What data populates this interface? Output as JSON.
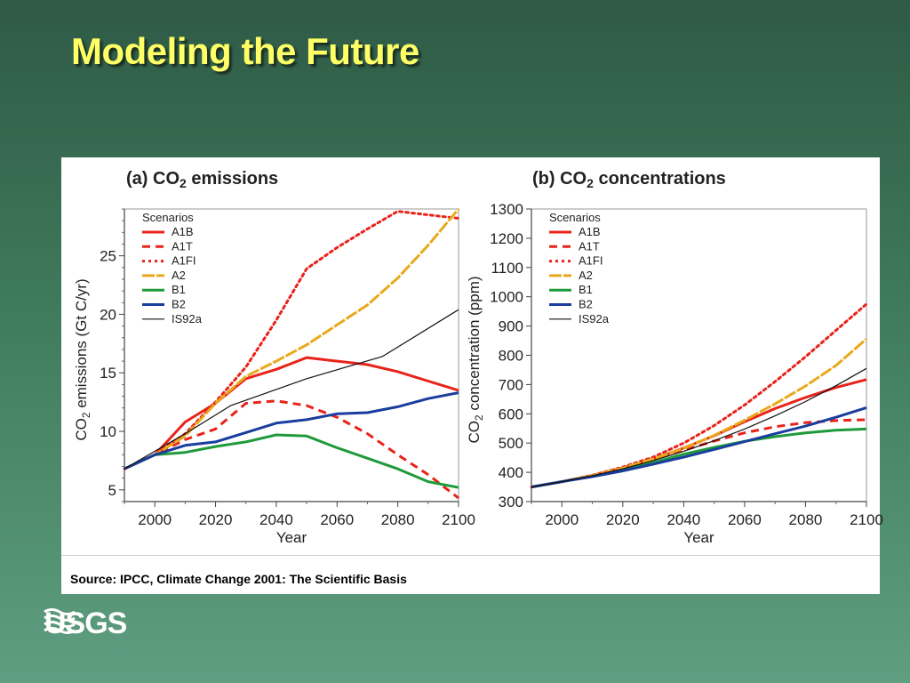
{
  "slide": {
    "title": "Modeling the Future",
    "source": "Source: IPCC, Climate Change 2001:  The Scientific Basis",
    "logo_text": "USGS"
  },
  "chart_data": [
    {
      "type": "line",
      "title_parts": [
        "(a) CO",
        "2",
        " emissions"
      ],
      "ylabel_parts": [
        "CO",
        "2",
        " emissions (Gt C/yr)"
      ],
      "xlabel": "Year",
      "xlim": [
        1990,
        2100
      ],
      "ylim": [
        4,
        29
      ],
      "xticks": [
        2000,
        2020,
        2040,
        2060,
        2080,
        2100
      ],
      "yticks": [
        5,
        10,
        15,
        20,
        25
      ],
      "legend_title": "Scenarios",
      "legend_position": "top-left",
      "series": [
        {
          "name": "A1B",
          "color": "#e8231a",
          "style": "solid",
          "x": [
            1990,
            2000,
            2010,
            2020,
            2030,
            2040,
            2050,
            2060,
            2070,
            2080,
            2090,
            2100
          ],
          "y": [
            6.8,
            8.0,
            10.8,
            12.4,
            14.5,
            15.3,
            16.3,
            16.0,
            15.7,
            15.1,
            14.3,
            13.5
          ]
        },
        {
          "name": "A1T",
          "color": "#e8231a",
          "style": "dashed",
          "x": [
            1990,
            2000,
            2010,
            2020,
            2030,
            2040,
            2050,
            2060,
            2070,
            2080,
            2090,
            2100
          ],
          "y": [
            6.8,
            8.0,
            9.3,
            10.2,
            12.4,
            12.6,
            12.2,
            11.2,
            9.8,
            8.0,
            6.3,
            4.3
          ]
        },
        {
          "name": "A1FI",
          "color": "#e8231a",
          "style": "dotted",
          "x": [
            1990,
            2000,
            2010,
            2020,
            2030,
            2040,
            2050,
            2060,
            2070,
            2080,
            2090,
            2100
          ],
          "y": [
            6.8,
            8.0,
            9.8,
            12.5,
            15.5,
            19.5,
            23.9,
            25.7,
            27.3,
            28.8,
            28.5,
            28.2
          ]
        },
        {
          "name": "A2",
          "color": "#e8a91c",
          "style": "solid",
          "x": [
            1990,
            2000,
            2010,
            2020,
            2030,
            2040,
            2050,
            2060,
            2070,
            2080,
            2090,
            2100
          ],
          "y": [
            6.8,
            8.0,
            9.6,
            12.4,
            14.7,
            16.0,
            17.4,
            19.1,
            20.8,
            23.1,
            25.9,
            29.0
          ]
        },
        {
          "name": "B1",
          "color": "#1f9a3a",
          "style": "solid",
          "x": [
            1990,
            2000,
            2010,
            2020,
            2030,
            2040,
            2050,
            2060,
            2070,
            2080,
            2090,
            2100
          ],
          "y": [
            6.8,
            8.0,
            8.2,
            8.7,
            9.1,
            9.7,
            9.6,
            8.6,
            7.7,
            6.8,
            5.7,
            5.2
          ]
        },
        {
          "name": "B2",
          "color": "#1a3e9e",
          "style": "solid",
          "x": [
            1990,
            2000,
            2010,
            2020,
            2030,
            2040,
            2050,
            2060,
            2070,
            2080,
            2090,
            2100
          ],
          "y": [
            6.8,
            8.0,
            8.8,
            9.1,
            9.9,
            10.7,
            11.0,
            11.5,
            11.6,
            12.1,
            12.8,
            13.3
          ]
        },
        {
          "name": "IS92a",
          "color": "#111111",
          "style": "thin",
          "x": [
            1990,
            2000,
            2010,
            2025,
            2050,
            2075,
            2100
          ],
          "y": [
            6.8,
            8.3,
            9.8,
            12.2,
            14.5,
            16.4,
            20.4
          ]
        }
      ]
    },
    {
      "type": "line",
      "title_parts": [
        "(b) CO",
        "2",
        " concentrations"
      ],
      "ylabel_parts": [
        "CO",
        "2",
        " concentration (ppm)"
      ],
      "xlabel": "Year",
      "xlim": [
        1990,
        2100
      ],
      "ylim": [
        300,
        1300
      ],
      "xticks": [
        2000,
        2020,
        2040,
        2060,
        2080,
        2100
      ],
      "yticks": [
        300,
        400,
        500,
        600,
        700,
        800,
        900,
        1000,
        1100,
        1200,
        1300
      ],
      "legend_title": "Scenarios",
      "legend_position": "top-left",
      "series": [
        {
          "name": "A1B",
          "color": "#e8231a",
          "style": "solid",
          "x": [
            1990,
            2000,
            2010,
            2020,
            2030,
            2040,
            2050,
            2060,
            2070,
            2080,
            2090,
            2100
          ],
          "y": [
            350,
            368,
            389,
            415,
            445,
            483,
            525,
            573,
            618,
            656,
            690,
            717
          ]
        },
        {
          "name": "A1T",
          "color": "#e8231a",
          "style": "dashed",
          "x": [
            1990,
            2000,
            2010,
            2020,
            2030,
            2040,
            2050,
            2060,
            2070,
            2080,
            2090,
            2100
          ],
          "y": [
            350,
            368,
            389,
            415,
            444,
            475,
            507,
            535,
            556,
            570,
            577,
            580
          ]
        },
        {
          "name": "A1FI",
          "color": "#e8231a",
          "style": "dotted",
          "x": [
            1990,
            2000,
            2010,
            2020,
            2030,
            2040,
            2050,
            2060,
            2070,
            2080,
            2090,
            2100
          ],
          "y": [
            350,
            368,
            390,
            418,
            452,
            500,
            560,
            630,
            710,
            795,
            885,
            975
          ]
        },
        {
          "name": "A2",
          "color": "#e8a91c",
          "style": "solid",
          "x": [
            1990,
            2000,
            2010,
            2020,
            2030,
            2040,
            2050,
            2060,
            2070,
            2080,
            2090,
            2100
          ],
          "y": [
            350,
            368,
            388,
            415,
            446,
            482,
            526,
            578,
            634,
            695,
            765,
            856
          ]
        },
        {
          "name": "B1",
          "color": "#1f9a3a",
          "style": "solid",
          "x": [
            1990,
            2000,
            2010,
            2020,
            2030,
            2040,
            2050,
            2060,
            2070,
            2080,
            2090,
            2100
          ],
          "y": [
            350,
            368,
            386,
            407,
            433,
            462,
            485,
            506,
            522,
            535,
            544,
            548
          ]
        },
        {
          "name": "B2",
          "color": "#1a3e9e",
          "style": "solid",
          "x": [
            1990,
            2000,
            2010,
            2020,
            2030,
            2040,
            2050,
            2060,
            2070,
            2080,
            2090,
            2100
          ],
          "y": [
            350,
            368,
            385,
            405,
            428,
            452,
            478,
            505,
            532,
            558,
            588,
            621
          ]
        },
        {
          "name": "IS92a",
          "color": "#111111",
          "style": "thin",
          "x": [
            1990,
            2000,
            2010,
            2020,
            2030,
            2040,
            2050,
            2060,
            2070,
            2080,
            2090,
            2100
          ],
          "y": [
            350,
            368,
            388,
            412,
            440,
            472,
            508,
            548,
            593,
            642,
            696,
            755
          ]
        }
      ]
    }
  ]
}
